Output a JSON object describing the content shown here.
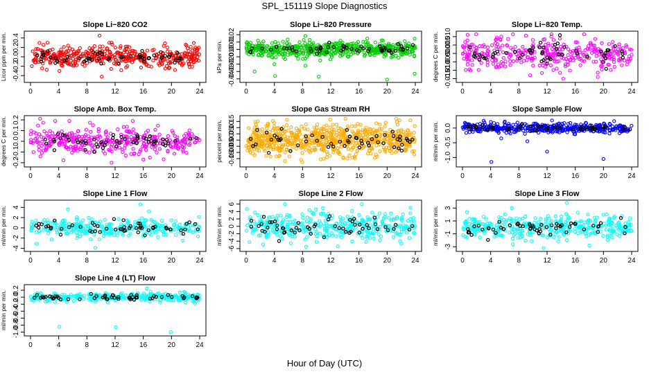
{
  "title": "SPL_151119  Slope Diagnostics",
  "x_title": "Hour of Day (UTC)",
  "colors": {
    "co2": "#ff0000",
    "pressure": "#00cc00",
    "temp": "#ff00ff",
    "rh": "#ffaa00",
    "sample_flow": "#0000ff",
    "line_flow": "#00ffff",
    "highlight": "#000000"
  },
  "chart_data": [
    {
      "type": "scatter",
      "title": "Slope Li−820 CO2",
      "ylabel": "Licor ppm per min.",
      "color": "#ff0000",
      "xlim": [
        0,
        24
      ],
      "ylim": [
        -0.5,
        0.5
      ],
      "xticks": [
        "0",
        "4",
        "8",
        "12",
        "16",
        "20",
        "24"
      ],
      "yticks": [
        {
          "v": -0.4,
          "label": "-0.4"
        },
        {
          "v": -0.2,
          "label": "-0.2"
        },
        {
          "v": 0.0,
          "label": "0.0"
        },
        {
          "v": 0.2,
          "label": "0.2"
        },
        {
          "v": 0.4,
          "label": "0.4"
        }
      ],
      "spread": 0.11,
      "n": 420,
      "outliers": [
        [
          4.1,
          -0.3
        ],
        [
          9.8,
          0.45
        ],
        [
          10.1,
          -0.42
        ],
        [
          20.5,
          -0.28
        ],
        [
          11.5,
          0.3
        ]
      ]
    },
    {
      "type": "scatter",
      "title": "Slope Li−820 Pressure",
      "ylabel": "kPa per min.",
      "color": "#00cc00",
      "xlim": [
        0,
        24
      ],
      "ylim": [
        -0.042,
        0.022
      ],
      "xticks": [
        "0",
        "4",
        "8",
        "12",
        "16",
        "20",
        "24"
      ],
      "yticks": [
        {
          "v": -0.04,
          "label": "-0.04"
        },
        {
          "v": -0.03,
          "label": "-0.03"
        },
        {
          "v": -0.02,
          "label": "-0.02"
        },
        {
          "v": -0.01,
          "label": "-0.01"
        },
        {
          "v": 0.0,
          "label": "0.00"
        },
        {
          "v": 0.01,
          "label": "0.01"
        },
        {
          "v": 0.02,
          "label": "0.02"
        }
      ],
      "spread": 0.005,
      "n": 520,
      "outliers": [
        [
          4.1,
          -0.036
        ],
        [
          10.3,
          -0.037
        ],
        [
          4.0,
          -0.02
        ],
        [
          8.4,
          -0.022
        ],
        [
          1.2,
          -0.03
        ],
        [
          20.0,
          -0.041
        ],
        [
          23.9,
          -0.033
        ],
        [
          10.5,
          -0.015
        ]
      ]
    },
    {
      "type": "scatter",
      "title": "Slope Li−820 Temp.",
      "ylabel": "degrees C per min.",
      "color": "#ff00ff",
      "xlim": [
        0,
        24
      ],
      "ylim": [
        -0.016,
        0.012
      ],
      "xticks": [
        "0",
        "4",
        "8",
        "12",
        "16",
        "20",
        "24"
      ],
      "yticks": [
        {
          "v": -0.015,
          "label": "-0.015"
        },
        {
          "v": -0.01,
          "label": "-0.010"
        },
        {
          "v": -0.005,
          "label": "-0.005"
        },
        {
          "v": 0.0,
          "label": "0.000"
        },
        {
          "v": 0.005,
          "label": "0.005"
        },
        {
          "v": 0.01,
          "label": "0.010"
        }
      ],
      "spread": 0.0045,
      "n": 360,
      "outliers": [
        [
          9.6,
          -0.013
        ],
        [
          14.3,
          -0.015
        ],
        [
          19.2,
          -0.014
        ],
        [
          5.5,
          0.01
        ]
      ]
    },
    {
      "type": "scatter",
      "title": "Slope Amb. Box Temp.",
      "ylabel": "degrees C per min.",
      "color": "#ff00ff",
      "xlim": [
        0,
        24
      ],
      "ylim": [
        -0.22,
        0.22
      ],
      "xticks": [
        "0",
        "4",
        "8",
        "12",
        "16",
        "20",
        "24"
      ],
      "yticks": [
        {
          "v": -0.2,
          "label": "-0.2"
        },
        {
          "v": -0.1,
          "label": "-0.1"
        },
        {
          "v": 0.0,
          "label": "0.0"
        },
        {
          "v": 0.1,
          "label": "0.1"
        },
        {
          "v": 0.2,
          "label": "0.2"
        }
      ],
      "spread": 0.065,
      "n": 360,
      "outliers": [
        [
          11.5,
          -0.2
        ],
        [
          3.5,
          0.19
        ],
        [
          14.5,
          0.19
        ],
        [
          16.0,
          -0.17
        ]
      ]
    },
    {
      "type": "scatter",
      "title": "Slope Gas Stream RH",
      "ylabel": "percent per min.",
      "color": "#ffaa00",
      "xlim": [
        0,
        24
      ],
      "ylim": [
        -0.2,
        0.18
      ],
      "xticks": [
        "0",
        "4",
        "8",
        "12",
        "16",
        "20",
        "24"
      ],
      "yticks": [
        {
          "v": -0.15,
          "label": "-0.15"
        },
        {
          "v": -0.1,
          "label": "-0.10"
        },
        {
          "v": -0.05,
          "label": "-0.05"
        },
        {
          "v": 0.0,
          "label": "0.00"
        },
        {
          "v": 0.05,
          "label": "0.05"
        },
        {
          "v": 0.1,
          "label": "0.10"
        },
        {
          "v": 0.15,
          "label": "0.15"
        }
      ],
      "spread": 0.06,
      "n": 700,
      "outliers": [
        [
          5.5,
          -0.17
        ],
        [
          7.8,
          -0.16
        ],
        [
          23.3,
          0.16
        ],
        [
          11.0,
          -0.15
        ]
      ]
    },
    {
      "type": "scatter",
      "title": "Slope Sample Flow",
      "ylabel": "ml/min per min.",
      "color": "#0000ff",
      "xlim": [
        0,
        24
      ],
      "ylim": [
        -1.25,
        0.35
      ],
      "xticks": [
        "0",
        "4",
        "8",
        "12",
        "16",
        "20",
        "24"
      ],
      "yticks": [
        {
          "v": -1.0,
          "label": "-1.0"
        },
        {
          "v": -0.5,
          "label": "-0.5"
        },
        {
          "v": 0.0,
          "label": "0.0"
        }
      ],
      "spread": 0.08,
      "n": 420,
      "outliers": [
        [
          4.1,
          -1.15
        ],
        [
          20.0,
          -1.05
        ],
        [
          12.0,
          -0.8
        ],
        [
          5.5,
          -0.35
        ],
        [
          9.2,
          -0.45
        ],
        [
          3.0,
          0.25
        ]
      ]
    },
    {
      "type": "scatter",
      "title": "Slope Line 1 Flow",
      "ylabel": "ml/min per min.",
      "color": "#00ffff",
      "xlim": [
        0,
        24
      ],
      "ylim": [
        -4.2,
        5.0
      ],
      "xticks": [
        "0",
        "4",
        "8",
        "12",
        "16",
        "20",
        "24"
      ],
      "yticks": [
        {
          "v": -4,
          "label": "-4"
        },
        {
          "v": -2,
          "label": "-2"
        },
        {
          "v": 0,
          "label": "0"
        },
        {
          "v": 2,
          "label": "2"
        },
        {
          "v": 4,
          "label": "4"
        }
      ],
      "spread": 0.9,
      "n": 300,
      "outliers": [
        [
          15.6,
          4.6
        ],
        [
          9.2,
          -3.9
        ],
        [
          16.8,
          3.2
        ],
        [
          5.3,
          3.6
        ]
      ]
    },
    {
      "type": "scatter",
      "title": "Slope Line 2 Flow",
      "ylabel": "ml/min per min.",
      "color": "#00ffff",
      "xlim": [
        0,
        24
      ],
      "ylim": [
        -6.2,
        6.5
      ],
      "xticks": [
        "0",
        "4",
        "8",
        "12",
        "16",
        "20",
        "24"
      ],
      "yticks": [
        {
          "v": -6,
          "label": "-6"
        },
        {
          "v": -4,
          "label": "-4"
        },
        {
          "v": -2,
          "label": "-2"
        },
        {
          "v": 0,
          "label": "0"
        },
        {
          "v": 2,
          "label": "2"
        },
        {
          "v": 4,
          "label": "4"
        },
        {
          "v": 6,
          "label": "6"
        }
      ],
      "spread": 1.8,
      "n": 360,
      "outliers": [
        [
          5.5,
          6.0
        ],
        [
          16.4,
          6.0
        ],
        [
          8.5,
          -5.5
        ],
        [
          13.0,
          -5.4
        ]
      ]
    },
    {
      "type": "scatter",
      "title": "Slope Line 3 Flow",
      "ylabel": "ml/min per min.",
      "color": "#00ffff",
      "xlim": [
        0,
        24
      ],
      "ylim": [
        -3.4,
        3.9
      ],
      "xticks": [
        "0",
        "4",
        "8",
        "12",
        "16",
        "20",
        "24"
      ],
      "yticks": [
        {
          "v": -3,
          "label": "-3"
        },
        {
          "v": -1,
          "label": "-1"
        },
        {
          "v": 1,
          "label": "1"
        },
        {
          "v": 3,
          "label": "3"
        }
      ],
      "spread": 0.85,
      "n": 360,
      "outliers": [
        [
          14.8,
          3.8
        ],
        [
          11.5,
          -3.2
        ],
        [
          18.0,
          -2.8
        ],
        [
          7.0,
          3.0
        ]
      ]
    },
    {
      "type": "scatter",
      "title": "Slope Line 4 (LT) Flow",
      "ylabel": "ml/min per min.",
      "color": "#00ffff",
      "xlim": [
        0,
        24
      ],
      "ylim": [
        -1.05,
        0.3
      ],
      "xticks": [
        "0",
        "4",
        "8",
        "12",
        "16",
        "20",
        "24"
      ],
      "yticks": [
        {
          "v": -1.0,
          "label": "-1.0"
        },
        {
          "v": -0.8,
          "label": "-0.8"
        },
        {
          "v": -0.6,
          "label": "-0.6"
        },
        {
          "v": -0.4,
          "label": "-0.4"
        },
        {
          "v": -0.2,
          "label": "-0.2"
        },
        {
          "v": 0.0,
          "label": "0.0"
        },
        {
          "v": 0.2,
          "label": "0.2"
        }
      ],
      "spread": 0.06,
      "n": 300,
      "outliers": [
        [
          4.1,
          -0.85
        ],
        [
          12.1,
          -0.86
        ],
        [
          19.9,
          -1.0
        ],
        [
          16.5,
          0.25
        ]
      ]
    }
  ]
}
